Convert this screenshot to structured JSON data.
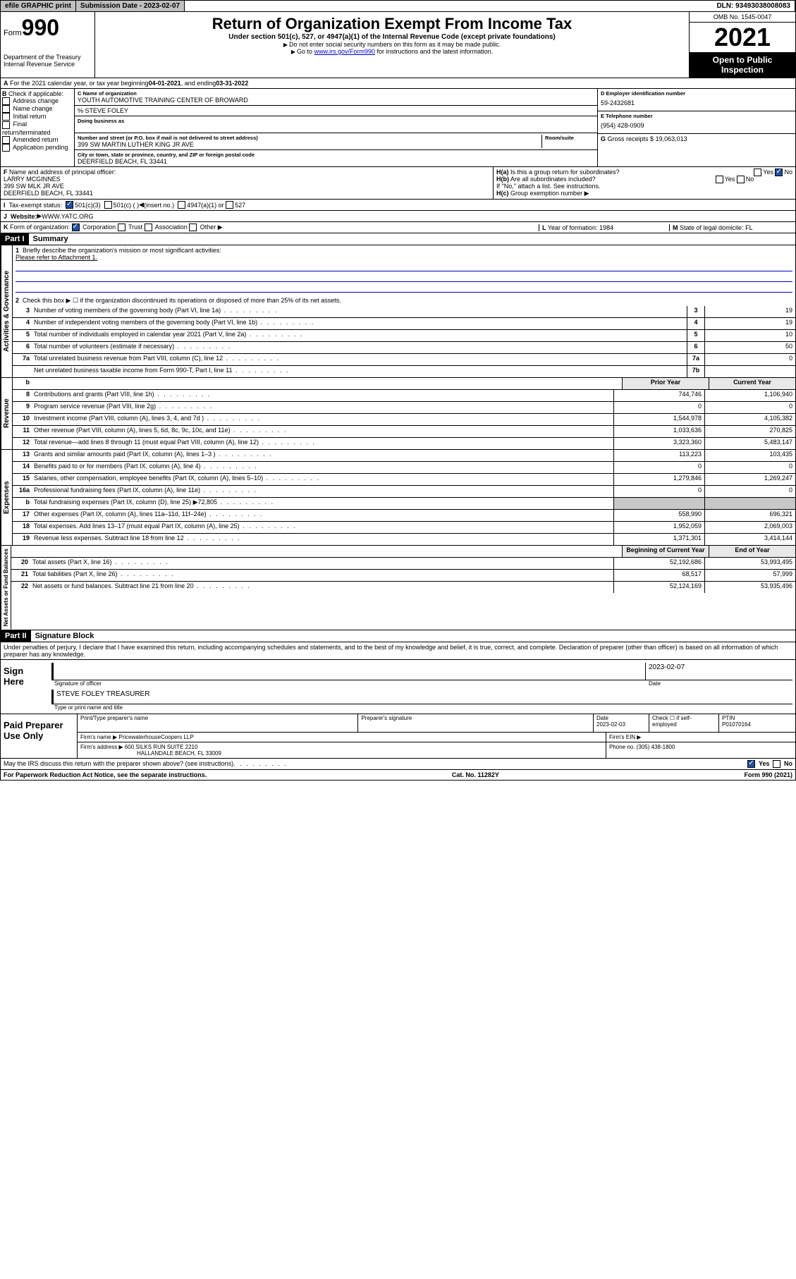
{
  "topbar": {
    "efile": "efile GRAPHIC print",
    "sub_label": "Submission Date - ",
    "sub_date": "2023-02-07",
    "dln_label": "DLN: ",
    "dln": "93493038008083"
  },
  "header": {
    "form_word": "Form",
    "form_num": "990",
    "dept": "Department of the Treasury",
    "irs": "Internal Revenue Service",
    "title": "Return of Organization Exempt From Income Tax",
    "sub1": "Under section 501(c), 527, or 4947(a)(1) of the Internal Revenue Code (except private foundations)",
    "sub2": "Do not enter social security numbers on this form as it may be made public.",
    "sub3a": "Go to ",
    "sub3_link": "www.irs.gov/Form990",
    "sub3b": " for instructions and the latest information.",
    "omb": "OMB No. 1545-0047",
    "year": "2021",
    "open": "Open to Public Inspection"
  },
  "lineA": {
    "text": "For the 2021 calendar year, or tax year beginning ",
    "begin": "04-01-2021",
    "mid": " , and ending ",
    "end": "03-31-2022"
  },
  "B": {
    "hdr": "Check if applicable:",
    "opts": [
      "Address change",
      "Name change",
      "Initial return",
      "Final return/terminated",
      "Amended return",
      "Application pending"
    ]
  },
  "C": {
    "name_label": "Name of organization",
    "name": "YOUTH AUTOMOTIVE TRAINING CENTER OF BROWARD",
    "care": "% STEVE FOLEY",
    "dba_label": "Doing business as",
    "street_label": "Number and street (or P.O. box if mail is not delivered to street address)",
    "room_label": "Room/suite",
    "street": "399 SW MARTIN LUTHER KING JR AVE",
    "city_label": "City or town, state or province, country, and ZIP or foreign postal code",
    "city": "DEERFIELD BEACH, FL  33441"
  },
  "D": {
    "label": "Employer identification number",
    "val": "59-2432681"
  },
  "E": {
    "label": "Telephone number",
    "val": "(954) 428-0909"
  },
  "G": {
    "label": "Gross receipts $",
    "val": "19,063,013"
  },
  "F": {
    "label": "Name and address of principal officer:",
    "name": "LARRY MCGINNES",
    "addr1": "399 SW MLK JR AVE",
    "addr2": "DEERFIELD BEACH, FL  33441"
  },
  "H": {
    "a": "Is this a group return for subordinates?",
    "b": "Are all subordinates included?",
    "note": "If \"No,\" attach a list. See instructions.",
    "c": "Group exemption number",
    "yes": "Yes",
    "no": "No"
  },
  "I": {
    "label": "Tax-exempt status:",
    "o1": "501(c)(3)",
    "o2": "501(c) (  )",
    "o2b": "(insert no.)",
    "o3": "4947(a)(1) or",
    "o4": "527"
  },
  "J": {
    "label": "Website:",
    "val": "WWW.YATC.ORG"
  },
  "K": {
    "label": "Form of organization:",
    "o1": "Corporation",
    "o2": "Trust",
    "o3": "Association",
    "o4": "Other"
  },
  "L": {
    "label": "Year of formation:",
    "val": "1984"
  },
  "M": {
    "label": "State of legal domicile:",
    "val": "FL"
  },
  "partI": {
    "hdr": "Part I",
    "title": "Summary",
    "l1": "Briefly describe the organization's mission or most significant activities:",
    "l1v": "Please refer to Attachment 1.",
    "l2": "Check this box ▶ ☐  if the organization discontinued its operations or disposed of more than 25% of its net assets.",
    "rows_ag": [
      {
        "n": "3",
        "d": "Number of voting members of the governing body (Part VI, line 1a)",
        "b": "3",
        "v": "19"
      },
      {
        "n": "4",
        "d": "Number of independent voting members of the governing body (Part VI, line 1b)",
        "b": "4",
        "v": "19"
      },
      {
        "n": "5",
        "d": "Total number of individuals employed in calendar year 2021 (Part V, line 2a)",
        "b": "5",
        "v": "10"
      },
      {
        "n": "6",
        "d": "Total number of volunteers (estimate if necessary)",
        "b": "6",
        "v": "50"
      },
      {
        "n": "7a",
        "d": "Total unrelated business revenue from Part VIII, column (C), line 12",
        "b": "7a",
        "v": "0"
      },
      {
        "n": "",
        "d": "Net unrelated business taxable income from Form 990-T, Part I, line 11",
        "b": "7b",
        "v": ""
      }
    ],
    "col_prior": "Prior Year",
    "col_curr": "Current Year",
    "rows_rev": [
      {
        "n": "8",
        "d": "Contributions and grants (Part VIII, line 1h)",
        "p": "744,746",
        "c": "1,106,940"
      },
      {
        "n": "9",
        "d": "Program service revenue (Part VIII, line 2g)",
        "p": "0",
        "c": "0"
      },
      {
        "n": "10",
        "d": "Investment income (Part VIII, column (A), lines 3, 4, and 7d )",
        "p": "1,544,978",
        "c": "4,105,382"
      },
      {
        "n": "11",
        "d": "Other revenue (Part VIII, column (A), lines 5, 6d, 8c, 9c, 10c, and 11e)",
        "p": "1,033,636",
        "c": "270,825"
      },
      {
        "n": "12",
        "d": "Total revenue—add lines 8 through 11 (must equal Part VIII, column (A), line 12)",
        "p": "3,323,360",
        "c": "5,483,147"
      }
    ],
    "rows_exp": [
      {
        "n": "13",
        "d": "Grants and similar amounts paid (Part IX, column (A), lines 1–3 )",
        "p": "113,223",
        "c": "103,435"
      },
      {
        "n": "14",
        "d": "Benefits paid to or for members (Part IX, column (A), line 4)",
        "p": "0",
        "c": "0"
      },
      {
        "n": "15",
        "d": "Salaries, other compensation, employee benefits (Part IX, column (A), lines 5–10)",
        "p": "1,279,846",
        "c": "1,269,247"
      },
      {
        "n": "16a",
        "d": "Professional fundraising fees (Part IX, column (A), line 11e)",
        "p": "0",
        "c": "0"
      },
      {
        "n": "b",
        "d": "Total fundraising expenses (Part IX, column (D), line 25) ▶72,805",
        "p": "",
        "c": "",
        "grey": true
      },
      {
        "n": "17",
        "d": "Other expenses (Part IX, column (A), lines 11a–11d, 11f–24e)",
        "p": "558,990",
        "c": "696,321"
      },
      {
        "n": "18",
        "d": "Total expenses. Add lines 13–17 (must equal Part IX, column (A), line 25)",
        "p": "1,952,059",
        "c": "2,069,003"
      },
      {
        "n": "19",
        "d": "Revenue less expenses. Subtract line 18 from line 12",
        "p": "1,371,301",
        "c": "3,414,144"
      }
    ],
    "col_begin": "Beginning of Current Year",
    "col_end": "End of Year",
    "rows_net": [
      {
        "n": "20",
        "d": "Total assets (Part X, line 16)",
        "p": "52,192,686",
        "c": "53,993,495"
      },
      {
        "n": "21",
        "d": "Total liabilities (Part X, line 26)",
        "p": "68,517",
        "c": "57,999"
      },
      {
        "n": "22",
        "d": "Net assets or fund balances. Subtract line 21 from line 20",
        "p": "52,124,169",
        "c": "53,935,496"
      }
    ],
    "tab_ag": "Activities & Governance",
    "tab_rev": "Revenue",
    "tab_exp": "Expenses",
    "tab_net": "Net Assets or Fund Balances"
  },
  "partII": {
    "hdr": "Part II",
    "title": "Signature Block",
    "decl": "Under penalties of perjury, I declare that I have examined this return, including accompanying schedules and statements, and to the best of my knowledge and belief, it is true, correct, and complete. Declaration of preparer (other than officer) is based on all information of which preparer has any knowledge."
  },
  "sign": {
    "here": "Sign Here",
    "sig_off": "Signature of officer",
    "date_lbl": "Date",
    "date": "2023-02-07",
    "name": "STEVE FOLEY TREASURER",
    "name_lbl": "Type or print name and title"
  },
  "paid": {
    "title": "Paid Preparer Use Only",
    "c1": "Print/Type preparer's name",
    "c2": "Preparer's signature",
    "c3": "Date",
    "c3v": "2023-02-03",
    "c4a": "Check ☐ if self-employed",
    "c5": "PTIN",
    "c5v": "P01070164",
    "firm_lbl": "Firm's name    ▶",
    "firm": "PricewaterhouseCoopers LLP",
    "ein_lbl": "Firm's EIN ▶",
    "addr_lbl": "Firm's address ▶",
    "addr1": "600 SILKS RUN SUITE 2210",
    "addr2": "HALLANDALE BEACH, FL  33009",
    "phone_lbl": "Phone no.",
    "phone": "(305) 438-1800"
  },
  "footer": {
    "q": "May the IRS discuss this return with the preparer shown above? (see instructions)",
    "yes": "Yes",
    "no": "No",
    "pra": "For Paperwork Reduction Act Notice, see the separate instructions.",
    "cat": "Cat. No. 11282Y",
    "form": "Form 990 (2021)"
  }
}
